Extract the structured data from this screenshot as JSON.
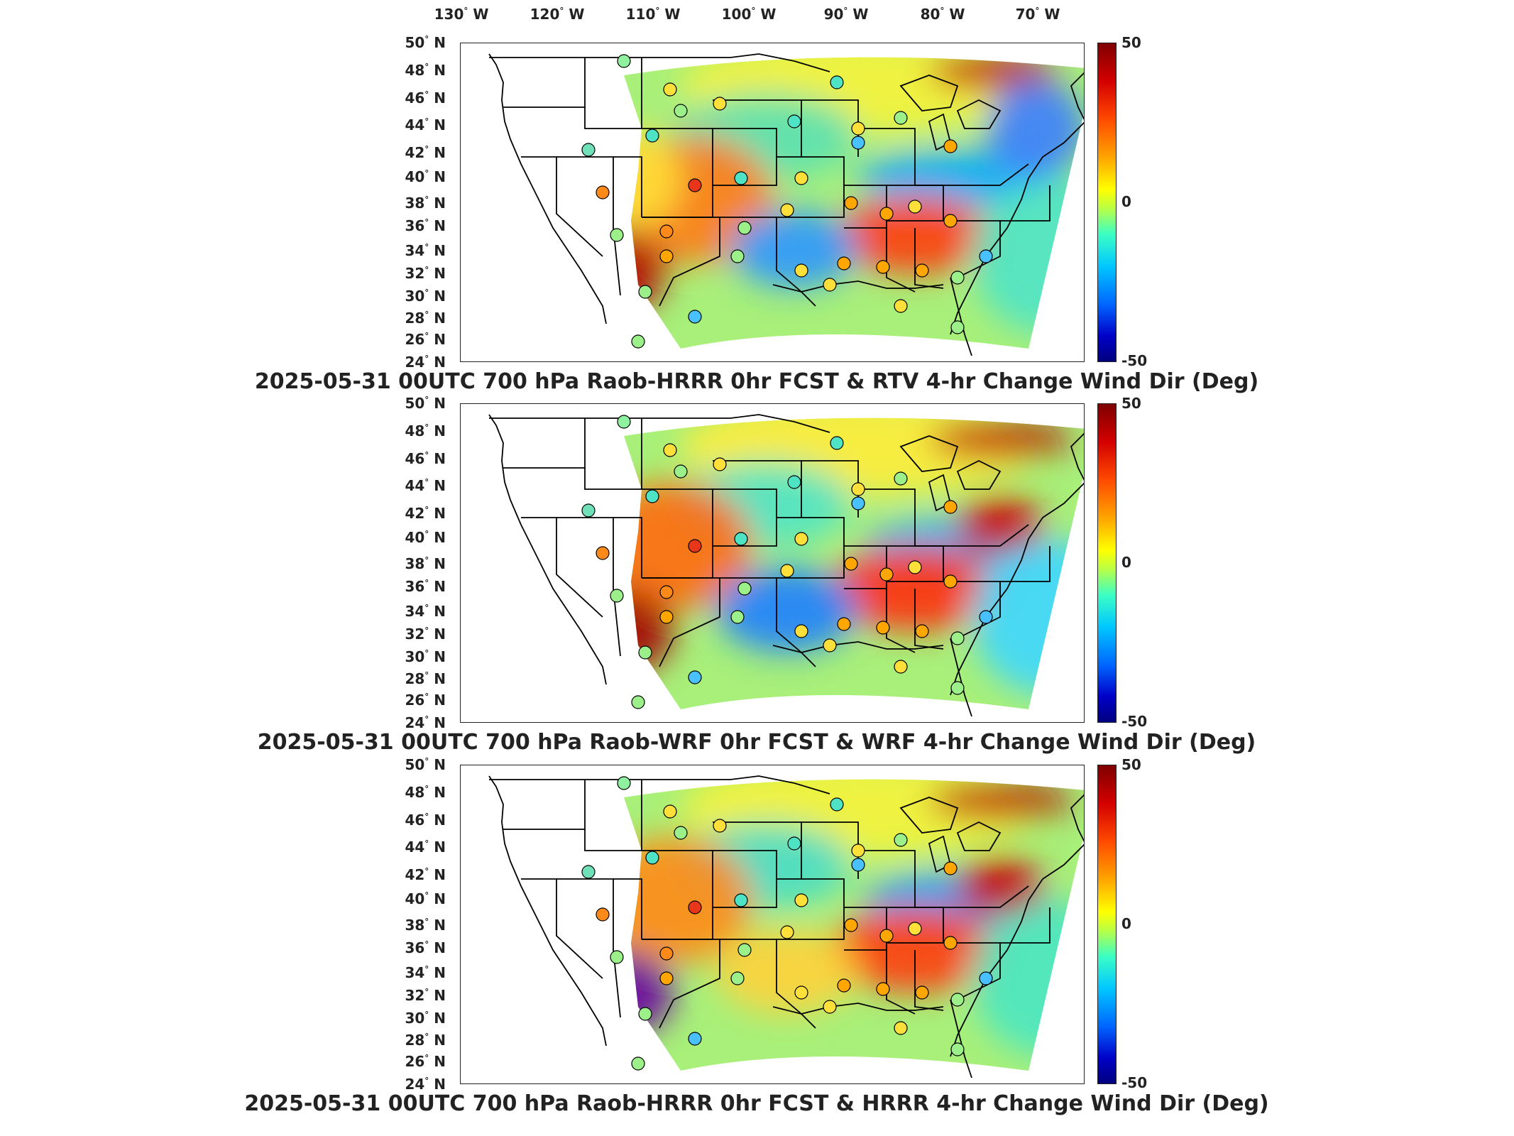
{
  "lon_labels": [
    "130",
    "120",
    "110",
    "100",
    "90",
    "80",
    "70"
  ],
  "lon_suffix": "W",
  "lat_labels": [
    "50",
    "48",
    "46",
    "44",
    "42",
    "40",
    "38",
    "36",
    "34",
    "32",
    "30",
    "28",
    "26",
    "24"
  ],
  "lat_suffix": "N",
  "colorbar": {
    "max_label": "50",
    "mid_label": "0",
    "min_label": "-50",
    "range": [
      -50,
      50
    ]
  },
  "panels": [
    {
      "title": "2025-05-31 00UTC 700 hPa Raob-HRRR 0hr FCST & RTV 4-hr Change Wind Dir (Deg)"
    },
    {
      "title": "2025-05-31 00UTC 700 hPa Raob-WRF 0hr FCST & WRF 4-hr Change Wind Dir (Deg)"
    },
    {
      "title": "2025-05-31 00UTC 700 hPa Raob-HRRR 0hr FCST & HRRR 4-hr Change Wind Dir (Deg)"
    }
  ],
  "colors": {
    "frame": "#222222",
    "land_outline": "#000000",
    "high": "#7f0000",
    "low": "#00007f"
  }
}
